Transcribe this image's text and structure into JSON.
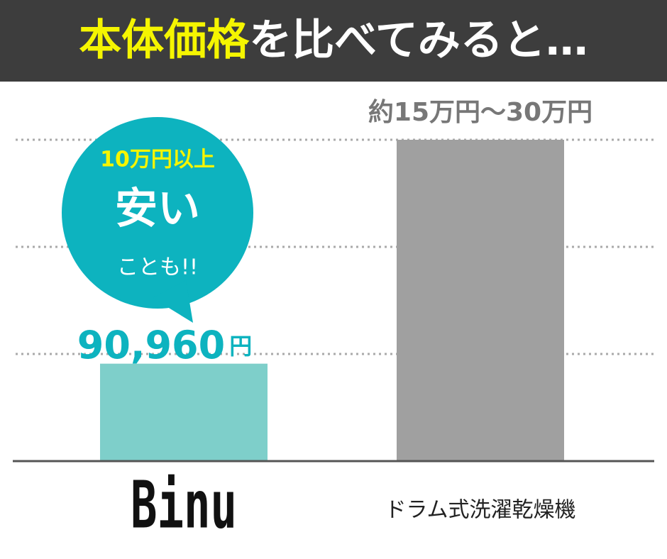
{
  "chart_data": {
    "type": "bar",
    "title_highlight": "本体価格",
    "title_rest": "を比べてみると…",
    "categories": [
      "Binu",
      "ドラム式洗濯乾燥機"
    ],
    "values": [
      90960,
      300000
    ],
    "value_labels": [
      "90,960",
      "約15万円〜30万円"
    ],
    "value_unit": "円",
    "colors": [
      "#7ecfca",
      "#a0a0a0"
    ],
    "ylim": [
      0,
      300000
    ],
    "yticks": [
      100000,
      200000,
      300000
    ],
    "grid": true,
    "annotation": {
      "lines": [
        "10万円以上",
        "安い",
        "ことも!!"
      ],
      "color": "#0db3bf"
    }
  }
}
